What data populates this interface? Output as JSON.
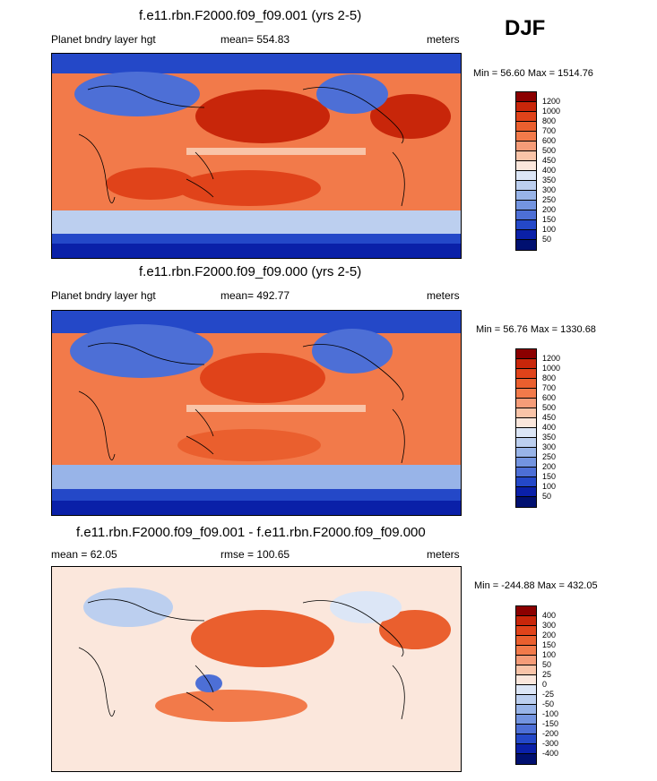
{
  "season_label": "DJF",
  "panels": [
    {
      "title": "f.e11.rbn.F2000.f09_f09.001 (yrs 2-5)",
      "left_label": "Planet bndry layer hgt",
      "center_label": "mean= 554.83",
      "right_label": "meters",
      "minmax": "Min =  56.60 Max = 1514.76"
    },
    {
      "title": "f.e11.rbn.F2000.f09_f09.000 (yrs 2-5)",
      "left_label": "Planet bndry layer hgt",
      "center_label": "mean= 492.77",
      "right_label": "meters",
      "minmax": "Min =  56.76 Max = 1330.68"
    },
    {
      "title": "f.e11.rbn.F2000.f09_f09.001 - f.e11.rbn.F2000.f09_f09.000",
      "left_label": "mean =  62.05",
      "center_label": "rmse = 100.65",
      "right_label": "meters",
      "minmax": "Min = -244.88 Max = 432.05"
    }
  ],
  "chart_data": [
    {
      "type": "heatmap",
      "title": "f.e11.rbn.F2000.f09_f09.001 (yrs 2-5)",
      "variable": "Planet bndry layer hgt",
      "units": "meters",
      "mean": 554.83,
      "min": 56.6,
      "max": 1514.76,
      "colorbar_levels": [
        "1200",
        "1000",
        "800",
        "700",
        "600",
        "500",
        "450",
        "400",
        "350",
        "300",
        "250",
        "200",
        "150",
        "100",
        "50"
      ],
      "colorbar_colors": [
        "#8b0000",
        "#c8260a",
        "#e0431a",
        "#ea5f2e",
        "#f27a4a",
        "#f59c78",
        "#f9c4a8",
        "#fbe7dc",
        "#dce6f6",
        "#bccfef",
        "#98b4e8",
        "#7394e0",
        "#4d6fd6",
        "#2448c8",
        "#0a20a8",
        "#001070"
      ]
    },
    {
      "type": "heatmap",
      "title": "f.e11.rbn.F2000.f09_f09.000 (yrs 2-5)",
      "variable": "Planet bndry layer hgt",
      "units": "meters",
      "mean": 492.77,
      "min": 56.76,
      "max": 1330.68,
      "colorbar_levels": [
        "1200",
        "1000",
        "800",
        "700",
        "600",
        "500",
        "450",
        "400",
        "350",
        "300",
        "250",
        "200",
        "150",
        "100",
        "50"
      ],
      "colorbar_colors": [
        "#8b0000",
        "#c8260a",
        "#e0431a",
        "#ea5f2e",
        "#f27a4a",
        "#f59c78",
        "#f9c4a8",
        "#fbe7dc",
        "#dce6f6",
        "#bccfef",
        "#98b4e8",
        "#7394e0",
        "#4d6fd6",
        "#2448c8",
        "#0a20a8",
        "#001070"
      ]
    },
    {
      "type": "heatmap",
      "title": "f.e11.rbn.F2000.f09_f09.001 - f.e11.rbn.F2000.f09_f09.000",
      "units": "meters",
      "mean": 62.05,
      "rmse": 100.65,
      "min": -244.88,
      "max": 432.05,
      "colorbar_levels": [
        "400",
        "300",
        "200",
        "150",
        "100",
        "50",
        "25",
        "0",
        "-25",
        "-50",
        "-100",
        "-150",
        "-200",
        "-300",
        "-400"
      ],
      "colorbar_colors": [
        "#8b0000",
        "#c8260a",
        "#e0431a",
        "#ea5f2e",
        "#f27a4a",
        "#f59c78",
        "#f9c4a8",
        "#fbe7dc",
        "#dce6f6",
        "#bccfef",
        "#98b4e8",
        "#7394e0",
        "#4d6fd6",
        "#2448c8",
        "#0a20a8",
        "#001070"
      ]
    }
  ]
}
